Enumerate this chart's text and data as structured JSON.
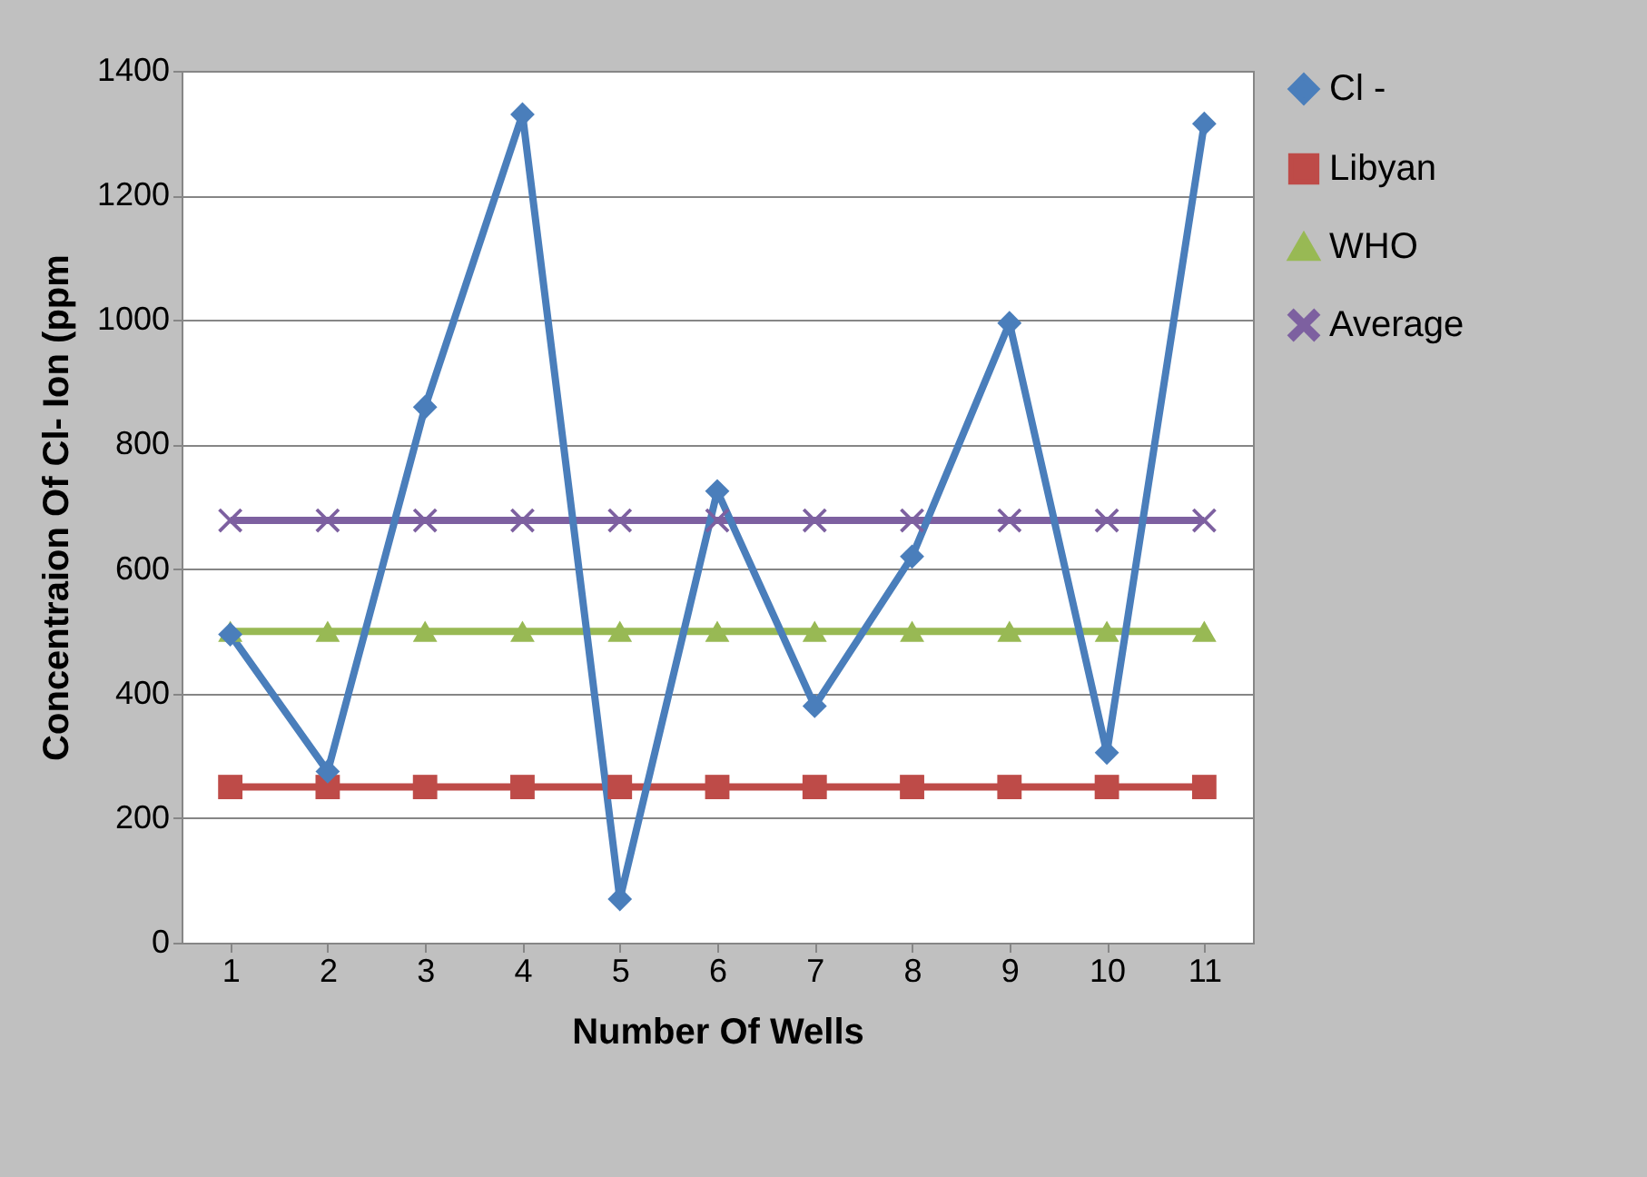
{
  "chart_data": {
    "type": "line",
    "xlabel": "Number Of Wells",
    "ylabel": "Concentraion Of Cl- Ion (ppm",
    "categories": [
      "1",
      "2",
      "3",
      "4",
      "5",
      "6",
      "7",
      "8",
      "9",
      "10",
      "11"
    ],
    "series": [
      {
        "name": "Cl -",
        "color": "#4a7ebb",
        "marker": "diamond",
        "values": [
          495,
          275,
          860,
          1330,
          70,
          725,
          380,
          620,
          995,
          305,
          1315
        ]
      },
      {
        "name": "Libyan",
        "color": "#be4b48",
        "marker": "square",
        "values": [
          250,
          250,
          250,
          250,
          250,
          250,
          250,
          250,
          250,
          250,
          250
        ]
      },
      {
        "name": "WHO",
        "color": "#98b954",
        "marker": "triangle",
        "values": [
          500,
          500,
          500,
          500,
          500,
          500,
          500,
          500,
          500,
          500,
          500
        ]
      },
      {
        "name": "Average",
        "color": "#7d60a0",
        "marker": "cross",
        "values": [
          678,
          678,
          678,
          678,
          678,
          678,
          678,
          678,
          678,
          678,
          678
        ]
      }
    ],
    "ylim": [
      0,
      1400
    ],
    "yticks": [
      0,
      200,
      400,
      600,
      800,
      1000,
      1200,
      1400
    ],
    "grid": "y",
    "legend": "right",
    "line_style": "solid"
  }
}
